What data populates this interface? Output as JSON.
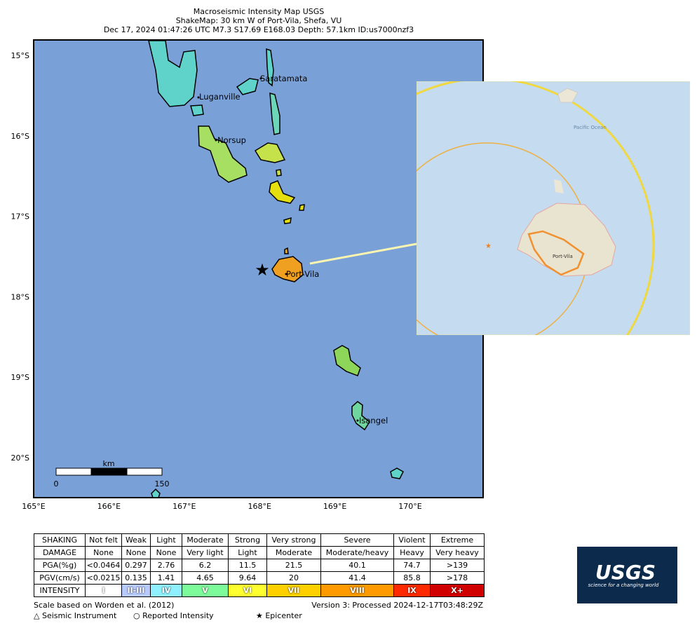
{
  "header": {
    "lines": [
      "Macroseismic Intensity Map USGS",
      "ShakeMap: 30 km W of Port-Vila, Shefa, VU",
      "Dec 17, 2024 01:47:26 UTC M7.3 S17.69 E168.03 Depth: 57.1km ID:us7000nzf3"
    ]
  },
  "map": {
    "lat_labels": [
      "15°S",
      "16°S",
      "17°S",
      "18°S",
      "19°S",
      "20°S"
    ],
    "lon_labels": [
      "165°E",
      "166°E",
      "167°E",
      "168°E",
      "169°E",
      "170°E"
    ],
    "places": [
      "Saratamata",
      "Luganville",
      "Norsup",
      "Port-Vila",
      "Isangel"
    ],
    "scale": {
      "unit": "km",
      "start": "0",
      "end": "150"
    }
  },
  "inset": {
    "ocean": "Pacific Ocean",
    "city": "Port-Vila"
  },
  "legend": {
    "rows": [
      [
        "SHAKING",
        "Not felt",
        "Weak",
        "Light",
        "Moderate",
        "Strong",
        "Very strong",
        "Severe",
        "Violent",
        "Extreme"
      ],
      [
        "DAMAGE",
        "None",
        "None",
        "None",
        "Very light",
        "Light",
        "Moderate",
        "Moderate/heavy",
        "Heavy",
        "Very heavy"
      ],
      [
        "PGA(%g)",
        "<0.0464",
        "0.297",
        "2.76",
        "6.2",
        "11.5",
        "21.5",
        "40.1",
        "74.7",
        ">139"
      ],
      [
        "PGV(cm/s)",
        "<0.0215",
        "0.135",
        "1.41",
        "4.65",
        "9.64",
        "20",
        "41.4",
        "85.8",
        ">178"
      ],
      [
        "INTENSITY",
        "I",
        "II-III",
        "IV",
        "V",
        "VI",
        "VII",
        "VIII",
        "IX",
        "X+"
      ]
    ],
    "intensity_colors": [
      "#ffffff",
      "#b8cbff",
      "#8ff0ff",
      "#7dfa9a",
      "#ffff30",
      "#ffd000",
      "#ff9a00",
      "#ff2a00",
      "#d00000"
    ]
  },
  "footer": {
    "reference": "Scale based on Worden et al. (2012)",
    "version": "Version 3: Processed 2024-12-17T03:48:29Z",
    "keys": [
      "△ Seismic Instrument",
      "○ Reported Intensity",
      "★ Epicenter"
    ]
  },
  "logo": {
    "name": "USGS",
    "tagline": "science for a changing world"
  }
}
